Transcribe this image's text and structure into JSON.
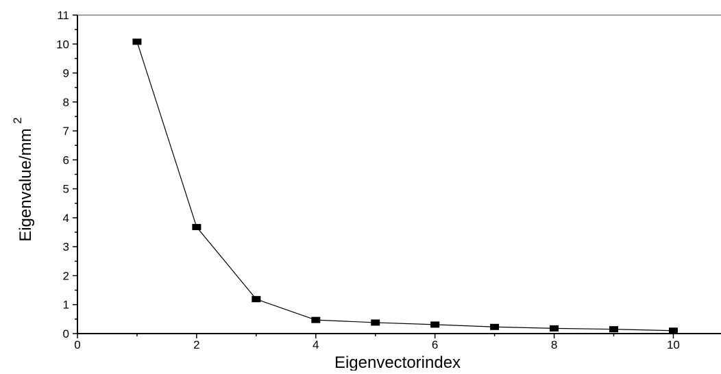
{
  "chart_data": {
    "type": "line",
    "title": "",
    "xlabel": "Eigenvectorindex",
    "ylabel": "Eigenvalue/mm",
    "ylabel_superscript": "2",
    "xlim": [
      0,
      10.8
    ],
    "ylim": [
      0,
      11
    ],
    "xticks": [
      0,
      2,
      4,
      6,
      8,
      10
    ],
    "yticks": [
      0,
      1,
      2,
      3,
      4,
      5,
      6,
      7,
      8,
      9,
      10,
      11
    ],
    "grid": false,
    "marker": "square",
    "line_color": "#000000",
    "series": [
      {
        "x": [
          1,
          2,
          3,
          4,
          5,
          6,
          7,
          8,
          9,
          10
        ],
        "values": [
          10.08,
          3.68,
          1.19,
          0.47,
          0.38,
          0.31,
          0.23,
          0.18,
          0.15,
          0.1
        ]
      }
    ]
  }
}
